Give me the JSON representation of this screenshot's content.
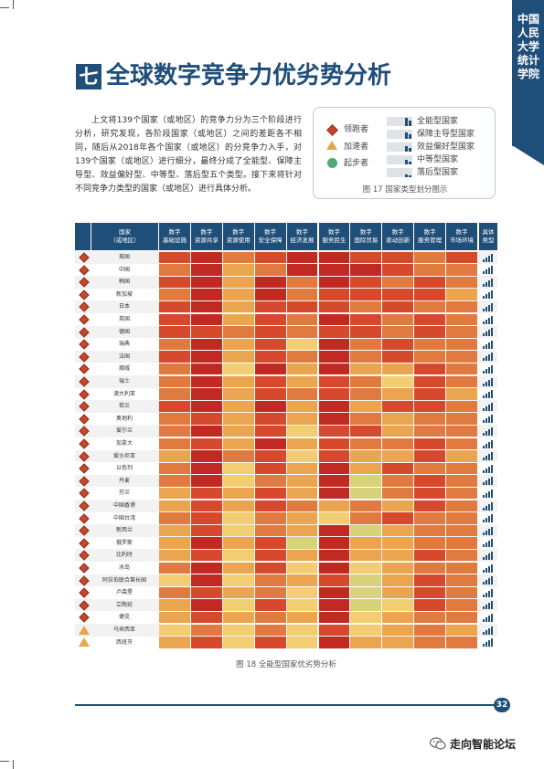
{
  "banner": {
    "text": "中国人民大学统计学院"
  },
  "section": {
    "number": "七",
    "title": "全球数字竞争力优劣势分析"
  },
  "intro_text": "上文将139个国家（或地区）的竞争力分为三个阶段进行分析，研究发现，各阶段国家（或地区）之间的差距各不相同，随后从2018年各个国家（或地区）的分竞争力入手，对139个国家（或地区）进行细分，最终分成了全能型、保障主导型、效益偏好型、中等型、落后型五个类型。接下来将针对不同竞争力类型的国家（或地区）进行具体分析。",
  "legend": {
    "stages": [
      "领跑者",
      "加速者",
      "起步者"
    ],
    "types": [
      "全能型国家",
      "保障主导型国家",
      "效益偏好型国家",
      "中等型国家",
      "落后型国家"
    ],
    "caption": "图 17  国家类型划分图示"
  },
  "table": {
    "country_header": [
      "国家",
      "（或地区）"
    ],
    "columns": [
      [
        "数字",
        "基础设施"
      ],
      [
        "数字",
        "资源共享"
      ],
      [
        "数字",
        "资源使用"
      ],
      [
        "数字",
        "安全保障"
      ],
      [
        "数字",
        "经济发展"
      ],
      [
        "数字",
        "服务民生"
      ],
      [
        "数字",
        "国际贸易"
      ],
      [
        "数字",
        "驱动创新"
      ],
      [
        "数字",
        "服务管理"
      ],
      [
        "数字",
        "市场环境"
      ]
    ],
    "type_header": [
      "具体",
      "类型"
    ],
    "palette": [
      "#c12a22",
      "#d6492c",
      "#e17a3e",
      "#eca54f",
      "#f3cd72",
      "#d8d27a"
    ],
    "rows": [
      {
        "name": "美国",
        "stage": "lead",
        "c": [
          1,
          0,
          2,
          1,
          0,
          0,
          1,
          1,
          2,
          1
        ]
      },
      {
        "name": "中国",
        "stage": "lead",
        "c": [
          2,
          0,
          3,
          2,
          0,
          0,
          0,
          1,
          2,
          2
        ]
      },
      {
        "name": "韩国",
        "stage": "lead",
        "c": [
          1,
          0,
          3,
          0,
          2,
          0,
          1,
          2,
          1,
          2
        ]
      },
      {
        "name": "新加坡",
        "stage": "lead",
        "c": [
          2,
          0,
          3,
          0,
          2,
          1,
          1,
          1,
          1,
          3
        ]
      },
      {
        "name": "日本",
        "stage": "lead",
        "c": [
          1,
          0,
          3,
          1,
          1,
          1,
          2,
          1,
          2,
          2
        ]
      },
      {
        "name": "英国",
        "stage": "lead",
        "c": [
          1,
          0,
          3,
          1,
          2,
          0,
          1,
          2,
          1,
          2
        ]
      },
      {
        "name": "德国",
        "stage": "lead",
        "c": [
          1,
          1,
          2,
          1,
          2,
          1,
          1,
          2,
          1,
          2
        ]
      },
      {
        "name": "瑞典",
        "stage": "lead",
        "c": [
          2,
          0,
          3,
          1,
          4,
          0,
          2,
          1,
          2,
          2
        ]
      },
      {
        "name": "法国",
        "stage": "lead",
        "c": [
          1,
          0,
          3,
          1,
          2,
          0,
          2,
          1,
          2,
          2
        ]
      },
      {
        "name": "挪威",
        "stage": "lead",
        "c": [
          2,
          0,
          4,
          0,
          3,
          0,
          3,
          3,
          1,
          2
        ]
      },
      {
        "name": "瑞士",
        "stage": "lead",
        "c": [
          2,
          0,
          3,
          1,
          3,
          1,
          2,
          4,
          1,
          2
        ]
      },
      {
        "name": "澳大利亚",
        "stage": "lead",
        "c": [
          2,
          0,
          3,
          1,
          2,
          1,
          2,
          3,
          1,
          3
        ]
      },
      {
        "name": "荷兰",
        "stage": "lead",
        "c": [
          1,
          0,
          3,
          0,
          3,
          0,
          3,
          1,
          1,
          2
        ]
      },
      {
        "name": "奥地利",
        "stage": "lead",
        "c": [
          2,
          1,
          3,
          1,
          3,
          0,
          2,
          3,
          2,
          2
        ]
      },
      {
        "name": "爱尔兰",
        "stage": "lead",
        "c": [
          2,
          0,
          3,
          1,
          4,
          1,
          1,
          3,
          2,
          2
        ]
      },
      {
        "name": "加拿大",
        "stage": "lead",
        "c": [
          2,
          1,
          3,
          0,
          3,
          1,
          2,
          2,
          1,
          2
        ]
      },
      {
        "name": "爱沙尼亚",
        "stage": "lead",
        "c": [
          3,
          0,
          2,
          1,
          4,
          1,
          3,
          3,
          1,
          3
        ]
      },
      {
        "name": "以色列",
        "stage": "lead",
        "c": [
          2,
          0,
          4,
          1,
          3,
          0,
          3,
          1,
          2,
          2
        ]
      },
      {
        "name": "丹麦",
        "stage": "lead",
        "c": [
          2,
          0,
          4,
          2,
          3,
          0,
          5,
          2,
          1,
          2
        ]
      },
      {
        "name": "芬兰",
        "stage": "lead",
        "c": [
          3,
          1,
          3,
          1,
          3,
          0,
          5,
          2,
          1,
          2
        ]
      },
      {
        "name": "中国香港",
        "stage": "lead",
        "c": [
          3,
          1,
          3,
          1,
          2,
          3,
          2,
          3,
          1,
          2
        ]
      },
      {
        "name": "中国台湾",
        "stage": "lead",
        "c": [
          2,
          1,
          4,
          2,
          3,
          4,
          2,
          1,
          2,
          2
        ]
      },
      {
        "name": "新西兰",
        "stage": "lead",
        "c": [
          3,
          1,
          4,
          2,
          3,
          0,
          5,
          3,
          2,
          2
        ]
      },
      {
        "name": "俄罗斯",
        "stage": "lead",
        "c": [
          3,
          0,
          3,
          1,
          5,
          0,
          3,
          3,
          2,
          2
        ]
      },
      {
        "name": "比利时",
        "stage": "lead",
        "c": [
          3,
          1,
          4,
          1,
          3,
          0,
          3,
          3,
          1,
          2
        ]
      },
      {
        "name": "冰岛",
        "stage": "lead",
        "c": [
          2,
          0,
          3,
          1,
          4,
          0,
          4,
          3,
          2,
          2
        ]
      },
      {
        "name": "阿拉伯联合酋长国",
        "stage": "lead",
        "c": [
          4,
          0,
          4,
          2,
          3,
          1,
          5,
          3,
          1,
          2
        ]
      },
      {
        "name": "卢森堡",
        "stage": "lead",
        "c": [
          2,
          1,
          3,
          2,
          4,
          0,
          5,
          3,
          1,
          2
        ]
      },
      {
        "name": "立陶宛",
        "stage": "lead",
        "c": [
          3,
          0,
          4,
          1,
          4,
          0,
          5,
          4,
          1,
          2
        ]
      },
      {
        "name": "捷克",
        "stage": "lead",
        "c": [
          3,
          1,
          3,
          2,
          3,
          0,
          4,
          3,
          2,
          2
        ]
      },
      {
        "name": "马来西亚",
        "stage": "accel",
        "c": [
          4,
          2,
          4,
          2,
          4,
          1,
          4,
          3,
          2,
          3
        ]
      },
      {
        "name": "西班牙",
        "stage": "accel",
        "c": [
          3,
          1,
          4,
          1,
          4,
          0,
          3,
          3,
          2,
          2
        ]
      }
    ],
    "caption": "图 18  全能型国家优劣势分析"
  },
  "footer": {
    "page_number": "32",
    "watermark": "走向智能论坛",
    "watermark_icon": "wechat-icon"
  }
}
